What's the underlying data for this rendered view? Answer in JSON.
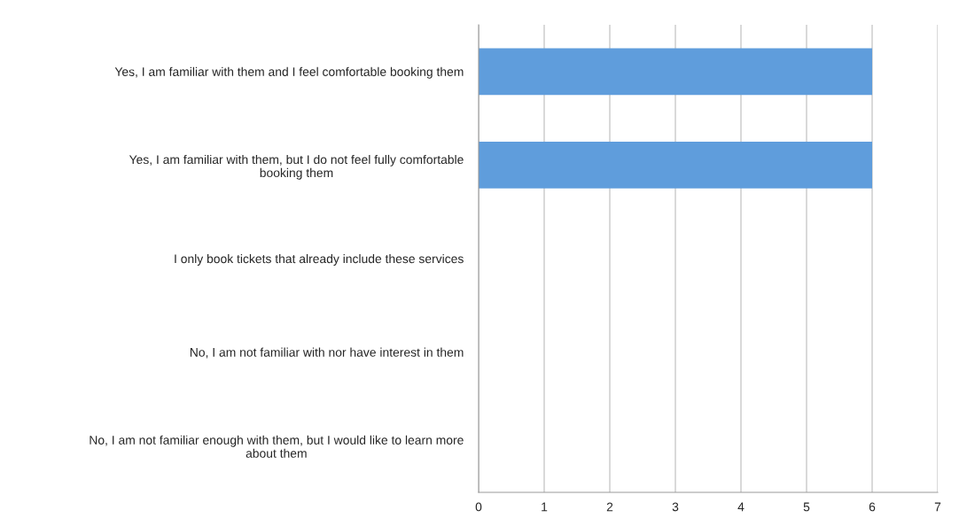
{
  "chart_data": {
    "type": "bar",
    "orientation": "horizontal",
    "categories": [
      "Yes, I am familiar with them and I feel comfortable booking them",
      "Yes, I am familiar with them, but I do not feel fully comfortable booking them",
      "I only book tickets that already include these services",
      "No, I am not familiar with nor have interest in them",
      "No, I am not familiar enough with them, but I would like to learn more about them"
    ],
    "values": [
      6,
      6,
      0,
      0,
      0
    ],
    "color": "#5f9ddc",
    "xlim": [
      0,
      7
    ],
    "xticks": [
      0,
      1,
      2,
      3,
      4,
      5,
      6,
      7
    ],
    "grid": "x"
  }
}
